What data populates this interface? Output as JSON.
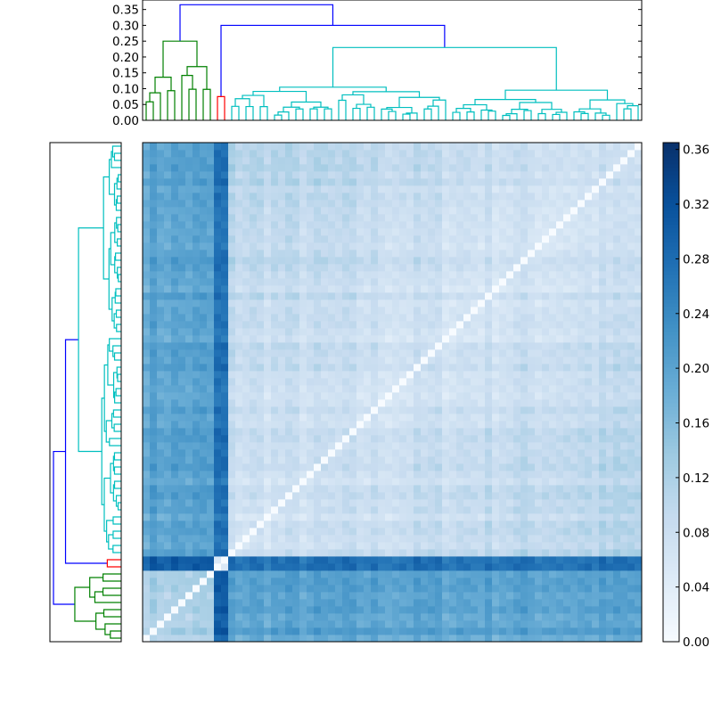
{
  "chart_data": {
    "type": "heatmap",
    "title": "",
    "xlabel": "",
    "ylabel": "",
    "n_leaves": 70,
    "leaf_order_note": "",
    "cluster_sizes": [
      10,
      2,
      58
    ],
    "cluster_colors": [
      "#008000",
      "#ff0000",
      "#00bfbf"
    ],
    "link_color": "#0000ff",
    "top_dendrogram": {
      "ylim": [
        0,
        0.38
      ],
      "yticks": [
        "0.00",
        "0.05",
        "0.10",
        "0.15",
        "0.20",
        "0.25",
        "0.30",
        "0.35"
      ],
      "ytick_values": [
        0,
        0.05,
        0.1,
        0.15,
        0.2,
        0.25,
        0.3,
        0.35
      ],
      "root_height": 0.365,
      "red_cyan_merge_height": 0.3,
      "green_cluster_height": 0.25,
      "cyan_cluster_height": 0.23,
      "red_cluster_height": 0.075
    },
    "colorbar": {
      "vmin": 0.0,
      "vmax": 0.365,
      "ticks": [
        "0.00",
        "0.04",
        "0.08",
        "0.12",
        "0.16",
        "0.20",
        "0.24",
        "0.28",
        "0.32",
        "0.36"
      ],
      "tick_values": [
        0,
        0.04,
        0.08,
        0.12,
        0.16,
        0.2,
        0.24,
        0.28,
        0.32,
        0.36
      ],
      "colormap": "Blues",
      "colors": [
        "#f7fbff",
        "#deebf7",
        "#c6dbef",
        "#9ecae1",
        "#6baed6",
        "#4292c6",
        "#2171b5",
        "#08519c",
        "#08306b"
      ]
    },
    "distance_levels": {
      "within_cyan": 0.07,
      "cyan_vs_green": 0.2,
      "red_vs_cyan": 0.27,
      "red_vs_green": 0.3,
      "within_green": 0.12,
      "within_red": 0.05,
      "diagonal": 0.0
    }
  }
}
